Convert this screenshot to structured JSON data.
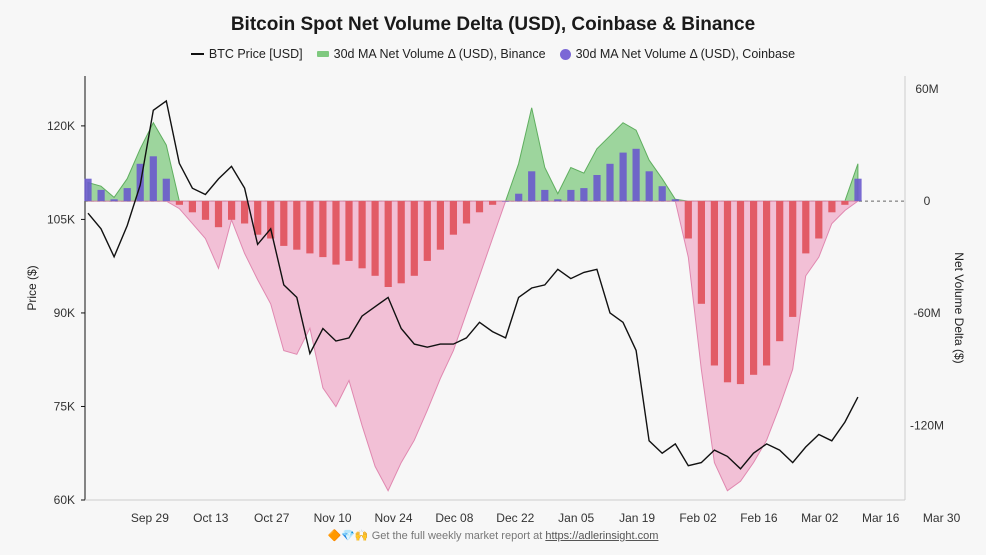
{
  "chart_data": {
    "type": "bar",
    "title": "Bitcoin Spot Net Volume Delta (USD), Coinbase & Binance",
    "legend": {
      "placement": "top-center",
      "items": [
        "BTC Price [USD]",
        "30d MA Net Volume Δ (USD), Binance",
        "30d MA Net Volume Δ (USD), Coinbase"
      ]
    },
    "ylabel_left": "Price ($)",
    "ylabel_right": "Net Volume Delta ($)",
    "y_left_ticks": [
      "60K",
      "75K",
      "90K",
      "105K",
      "120K"
    ],
    "y_left_ticks_values": [
      60000,
      75000,
      90000,
      105000,
      120000
    ],
    "y_right_ticks": [
      "60M",
      "0",
      "-60M",
      "-120M"
    ],
    "y_right_ticks_values": [
      60,
      0,
      -60,
      -120
    ],
    "x_tick_labels": [
      "Sep 29",
      "Oct 13",
      "Oct 27",
      "Nov 10",
      "Nov 24",
      "Dec 08",
      "Dec 22",
      "Jan 05",
      "Jan 19",
      "Feb 02",
      "Feb 16",
      "Mar 02",
      "Mar 16",
      "Mar 30"
    ],
    "ylim_left": [
      60000,
      128000
    ],
    "ylim_right_millions": [
      -160,
      67
    ],
    "grid": false,
    "colors": {
      "price": "#111111",
      "binance_pos": "#7fc97f",
      "binance_neg": "#f0a8c8",
      "coinbase_pos": "#6a5acd",
      "coinbase_neg": "#e0505a"
    },
    "x_days": [
      0,
      3,
      6,
      9,
      12,
      15,
      18,
      21,
      24,
      27,
      30,
      33,
      36,
      39,
      42,
      45,
      48,
      51,
      54,
      57,
      60,
      63,
      66,
      69,
      72,
      75,
      78,
      81,
      84,
      87,
      90,
      93,
      96,
      99,
      102,
      105,
      108,
      111,
      114,
      117,
      120,
      123,
      126,
      129,
      132,
      135,
      138,
      141,
      144,
      147,
      150,
      153,
      156,
      159,
      162,
      165,
      168,
      171,
      174,
      177
    ],
    "price": [
      106000,
      103500,
      99000,
      104000,
      110500,
      122500,
      124000,
      114000,
      110000,
      109000,
      111500,
      113500,
      110000,
      101000,
      103500,
      94500,
      92500,
      83500,
      87500,
      85500,
      86000,
      89500,
      91000,
      92500,
      87500,
      85000,
      84500,
      85000,
      85000,
      86000,
      88500,
      87000,
      86000,
      92500,
      94000,
      94500,
      97000,
      95500,
      96500,
      97000,
      90000,
      88500,
      84000,
      69500,
      67500,
      69000,
      65500,
      66000,
      68000,
      67000,
      65000,
      67500,
      69000,
      68000,
      66000,
      68500,
      70500,
      69500,
      72500,
      76500
    ],
    "binance_net_volume_m": [
      10,
      8,
      2,
      12,
      28,
      42,
      30,
      -4,
      -12,
      -20,
      -36,
      -10,
      -28,
      -42,
      -55,
      -80,
      -82,
      -68,
      -100,
      -110,
      -96,
      -120,
      -142,
      -155,
      -140,
      -128,
      -112,
      -95,
      -80,
      -60,
      -40,
      -20,
      0,
      20,
      50,
      18,
      4,
      18,
      15,
      28,
      35,
      42,
      38,
      22,
      12,
      1,
      -30,
      -90,
      -140,
      -155,
      -150,
      -140,
      -128,
      -110,
      -90,
      -40,
      -30,
      -12,
      -5,
      20
    ],
    "coinbase_net_volume_m": [
      12,
      6,
      1,
      7,
      20,
      24,
      12,
      -2,
      -6,
      -10,
      -14,
      -10,
      -12,
      -18,
      -20,
      -24,
      -26,
      -28,
      -30,
      -34,
      -32,
      -36,
      -40,
      -46,
      -44,
      -40,
      -32,
      -26,
      -18,
      -12,
      -6,
      -2,
      0,
      4,
      16,
      6,
      1,
      6,
      7,
      14,
      20,
      26,
      28,
      16,
      8,
      1,
      -20,
      -55,
      -88,
      -97,
      -98,
      -93,
      -88,
      -75,
      -62,
      -28,
      -20,
      -6,
      -2,
      12
    ]
  },
  "footer": {
    "icons": "🔶💎🙌",
    "prefix": "Get the full weekly market report at",
    "link": "https://adlerinsight.com"
  }
}
